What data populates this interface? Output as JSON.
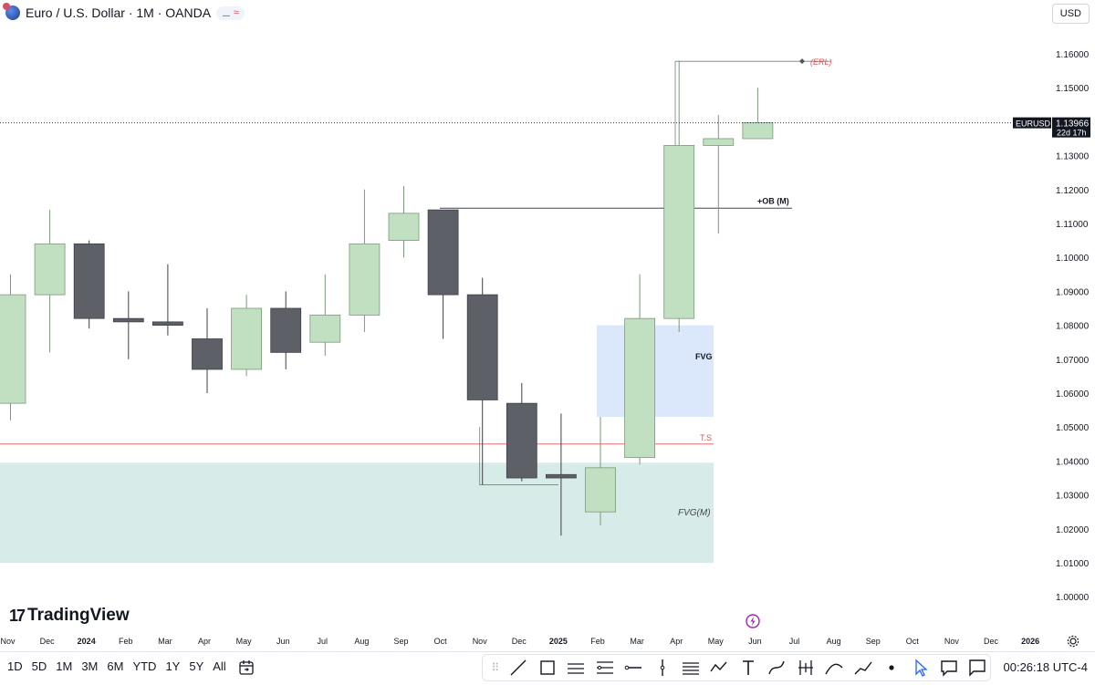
{
  "header": {
    "title": "Euro / U.S. Dollar · 1M · OANDA",
    "badge_left": "⚊",
    "badge_right": "≈",
    "currency": "USD"
  },
  "logo": {
    "mark": "17",
    "text": "TradingView"
  },
  "price_axis": {
    "ticks": [
      "1.16000",
      "1.15000",
      "1.14000",
      "1.13000",
      "1.12000",
      "1.11000",
      "1.10000",
      "1.09000",
      "1.08000",
      "1.07000",
      "1.06000",
      "1.05000",
      "1.04000",
      "1.03000",
      "1.02000",
      "1.01000",
      "1.00000"
    ],
    "symbol_tag": "EURUSD",
    "last_price": "1.13966",
    "countdown": "22d 17h"
  },
  "time_axis": {
    "labels": [
      "Nov",
      "Dec",
      "2024",
      "Feb",
      "Mar",
      "Apr",
      "May",
      "Jun",
      "Jul",
      "Aug",
      "Sep",
      "Oct",
      "Nov",
      "Dec",
      "2025",
      "Feb",
      "Mar",
      "Apr",
      "May",
      "Jun",
      "Jul",
      "Aug",
      "Sep",
      "Oct",
      "Nov",
      "Dec",
      "2026"
    ],
    "bold_labels": [
      "2024",
      "2025",
      "2026"
    ]
  },
  "annotations": {
    "erl": "(ERL)",
    "ob": "+OB (M)",
    "fvg": "FVG",
    "ts": "T.S",
    "fvg_m": "FVG(M)"
  },
  "colors": {
    "bull_fill": "#c1e0c1",
    "bull_border": "#7a9a7a",
    "bear_fill": "#5d6066",
    "bear_border": "#3d4046",
    "fvg_zone": "#dbe8fb",
    "fvg_m_zone": "#d7ece8",
    "ts_line": "#e05555",
    "text": "#131722",
    "muted": "#787b86"
  },
  "chart_data": {
    "type": "candlestick",
    "symbol": "EURUSD",
    "interval": "1M",
    "candles": [
      {
        "t": "2023-10",
        "o": 1.057,
        "h": 1.095,
        "l": 1.052,
        "c": 1.089
      },
      {
        "t": "2023-11",
        "o": 1.089,
        "h": 1.114,
        "l": 1.072,
        "c": 1.104
      },
      {
        "t": "2023-12",
        "o": 1.104,
        "h": 1.105,
        "l": 1.079,
        "c": 1.082
      },
      {
        "t": "2024-01",
        "o": 1.082,
        "h": 1.09,
        "l": 1.07,
        "c": 1.081
      },
      {
        "t": "2024-02",
        "o": 1.081,
        "h": 1.098,
        "l": 1.077,
        "c": 1.08
      },
      {
        "t": "2024-03",
        "o": 1.076,
        "h": 1.085,
        "l": 1.06,
        "c": 1.067
      },
      {
        "t": "2024-04",
        "o": 1.067,
        "h": 1.089,
        "l": 1.065,
        "c": 1.085
      },
      {
        "t": "2024-05",
        "o": 1.085,
        "h": 1.09,
        "l": 1.067,
        "c": 1.072
      },
      {
        "t": "2024-06",
        "o": 1.075,
        "h": 1.095,
        "l": 1.071,
        "c": 1.083
      },
      {
        "t": "2024-07",
        "o": 1.083,
        "h": 1.12,
        "l": 1.078,
        "c": 1.104
      },
      {
        "t": "2024-08",
        "o": 1.105,
        "h": 1.121,
        "l": 1.1,
        "c": 1.113
      },
      {
        "t": "2024-09",
        "o": 1.114,
        "h": 1.114,
        "l": 1.076,
        "c": 1.089
      },
      {
        "t": "2024-10",
        "o": 1.089,
        "h": 1.094,
        "l": 1.033,
        "c": 1.058
      },
      {
        "t": "2024-11",
        "o": 1.057,
        "h": 1.063,
        "l": 1.034,
        "c": 1.035
      },
      {
        "t": "2024-12",
        "o": 1.036,
        "h": 1.054,
        "l": 1.018,
        "c": 1.035
      },
      {
        "t": "2025-01",
        "o": 1.025,
        "h": 1.053,
        "l": 1.021,
        "c": 1.038
      },
      {
        "t": "2025-02",
        "o": 1.041,
        "h": 1.095,
        "l": 1.039,
        "c": 1.082
      },
      {
        "t": "2025-03",
        "o": 1.082,
        "h": 1.158,
        "l": 1.078,
        "c": 1.133
      },
      {
        "t": "2025-04",
        "o": 1.133,
        "h": 1.142,
        "l": 1.107,
        "c": 1.135
      },
      {
        "t": "2025-05",
        "o": 1.135,
        "h": 1.15,
        "l": 1.135,
        "c": 1.1397
      }
    ],
    "y_axis": {
      "min": 1.0,
      "max": 1.16,
      "scale": "linear"
    },
    "current_price": 1.13966,
    "levels": [
      {
        "name": "(ERL)",
        "price": 1.1578
      },
      {
        "name": "+OB (M)",
        "price": 1.1145
      },
      {
        "name": "T.S",
        "price": 1.045
      }
    ],
    "zones": [
      {
        "name": "FVG",
        "top": 1.08,
        "bottom": 1.053
      },
      {
        "name": "FVG(M)",
        "top": 1.0395,
        "bottom": 1.01
      }
    ]
  },
  "bottom": {
    "ranges": [
      "1D",
      "5D",
      "1M",
      "3M",
      "6M",
      "YTD",
      "1Y",
      "5Y",
      "All"
    ],
    "tools": [
      "trend-line",
      "rectangle",
      "parallel-channel",
      "fib-retracement",
      "horizontal-ray",
      "vertical-line",
      "horizontal-lines",
      "path",
      "text",
      "curve",
      "long-short",
      "arc",
      "polyline",
      "dot",
      "cursor",
      "callout",
      "comment"
    ],
    "clock": "00:26:18 UTC-4"
  }
}
